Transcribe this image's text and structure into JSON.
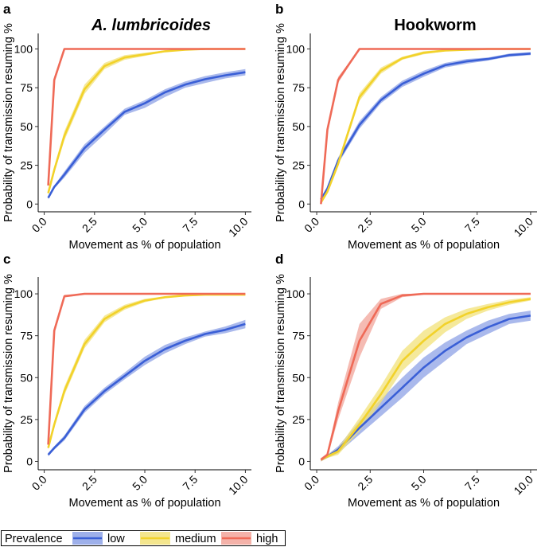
{
  "chart_data": [
    {
      "panel": "a",
      "type": "line",
      "title": "A. lumbricoides",
      "title_italic": true,
      "xlabel": "Movement as % of population",
      "ylabel": "Probability of transmission resuming %",
      "xlim": [
        -0.3,
        10.3
      ],
      "ylim": [
        -5,
        110
      ],
      "xticks": [
        0.0,
        2.5,
        5.0,
        7.5,
        10.0
      ],
      "xtick_labels": [
        "0.0",
        "2.5",
        "5.0",
        "7.5",
        "10.0"
      ],
      "yticks": [
        0,
        25,
        50,
        75,
        100
      ],
      "ytick_labels": [
        "0",
        "25",
        "50",
        "75",
        "100"
      ],
      "series": [
        {
          "name": "low",
          "x": [
            0.2,
            0.5,
            1,
            2,
            3,
            4,
            5,
            6,
            7,
            8,
            9,
            10
          ],
          "y": [
            4,
            11,
            19,
            36,
            48,
            59.5,
            65,
            72,
            77,
            80.5,
            83,
            85
          ],
          "lower": [
            3,
            10,
            17,
            33,
            45,
            57.5,
            62,
            69,
            75,
            78,
            81,
            83
          ],
          "upper": [
            5,
            12,
            21,
            38.5,
            50,
            61.5,
            67,
            74,
            79,
            82.5,
            85,
            87
          ]
        },
        {
          "name": "medium",
          "x": [
            0.2,
            0.5,
            1,
            2,
            3,
            4,
            5,
            6,
            7,
            8,
            9,
            10
          ],
          "y": [
            7,
            22,
            44,
            74,
            89,
            94.5,
            96.5,
            98.5,
            99.5,
            100,
            100,
            100
          ],
          "lower": [
            6,
            20,
            41,
            71,
            87,
            93,
            95.5,
            98,
            99,
            99.5,
            99.5,
            99.5
          ],
          "upper": [
            8,
            24,
            47,
            77,
            91,
            96,
            97.5,
            99,
            100,
            100,
            100,
            100
          ]
        },
        {
          "name": "high",
          "x": [
            0.2,
            0.5,
            1,
            2,
            3,
            4,
            5,
            6,
            7,
            8,
            9,
            10
          ],
          "y": [
            12,
            80,
            100,
            100,
            100,
            100,
            100,
            100,
            100,
            100,
            100,
            100
          ],
          "lower": [
            11,
            78,
            99.5,
            99.5,
            99.5,
            99.5,
            99.5,
            99.5,
            99.5,
            99.5,
            99.5,
            99.5
          ],
          "upper": [
            13,
            82,
            100,
            100,
            100,
            100,
            100,
            100,
            100,
            100,
            100,
            100
          ]
        }
      ]
    },
    {
      "panel": "b",
      "type": "line",
      "title": "Hookworm",
      "title_italic": false,
      "xlabel": "Movement as % of population",
      "ylabel": "Probability of transmission resuming %",
      "xlim": [
        -0.3,
        10.3
      ],
      "ylim": [
        -5,
        110
      ],
      "xticks": [
        0.0,
        2.5,
        5.0,
        7.5,
        10.0
      ],
      "xtick_labels": [
        "0.0",
        "2.5",
        "5.0",
        "7.5",
        "10.0"
      ],
      "yticks": [
        0,
        25,
        50,
        75,
        100
      ],
      "ytick_labels": [
        "0",
        "25",
        "50",
        "75",
        "100"
      ],
      "series": [
        {
          "name": "low",
          "x": [
            0.2,
            0.5,
            1,
            2,
            3,
            4,
            5,
            6,
            7,
            8,
            9,
            10
          ],
          "y": [
            3,
            10,
            28,
            51,
            67,
            77.5,
            84,
            89.5,
            92,
            93.5,
            96,
            97
          ],
          "lower": [
            2,
            9,
            26,
            48.5,
            65,
            75.5,
            82,
            88,
            90.5,
            92.5,
            95,
            96
          ],
          "upper": [
            4,
            11,
            30,
            53.5,
            69,
            79.5,
            86,
            91,
            93.5,
            94.5,
            97,
            98
          ]
        },
        {
          "name": "medium",
          "x": [
            0.2,
            0.5,
            1,
            2,
            3,
            4,
            5,
            6,
            7,
            8,
            9,
            10
          ],
          "y": [
            1,
            8,
            26,
            69,
            86,
            94,
            97.5,
            99,
            99.5,
            100,
            100,
            100
          ],
          "lower": [
            0,
            7,
            24,
            66.5,
            84,
            93,
            96.5,
            98.5,
            99,
            99.5,
            99.5,
            99.5
          ],
          "upper": [
            2,
            9,
            28,
            71.5,
            88,
            95,
            98.5,
            99.5,
            100,
            100,
            100,
            100
          ]
        },
        {
          "name": "high",
          "x": [
            0.2,
            0.5,
            1,
            2,
            3,
            4,
            5,
            6,
            7,
            8,
            9,
            10
          ],
          "y": [
            0,
            48,
            80,
            100,
            100,
            100,
            100,
            100,
            100,
            100,
            100,
            100
          ],
          "lower": [
            -1,
            46,
            78,
            99.5,
            99.5,
            99.5,
            99.5,
            99.5,
            99.5,
            99.5,
            99.5,
            99.5
          ],
          "upper": [
            1,
            50,
            82,
            100,
            100,
            100,
            100,
            100,
            100,
            100,
            100,
            100
          ]
        }
      ]
    },
    {
      "panel": "c",
      "type": "line",
      "title": "",
      "title_italic": false,
      "xlabel": "Movement as % of population",
      "ylabel": "Probability of transmission resuming %",
      "xlim": [
        -0.3,
        10.3
      ],
      "ylim": [
        -5,
        110
      ],
      "xticks": [
        0.0,
        2.5,
        5.0,
        7.5,
        10.0
      ],
      "xtick_labels": [
        "0.0",
        "2.5",
        "5.0",
        "7.5",
        "10.0"
      ],
      "yticks": [
        0,
        25,
        50,
        75,
        100
      ],
      "ytick_labels": [
        "0",
        "25",
        "50",
        "75",
        "100"
      ],
      "series": [
        {
          "name": "low",
          "x": [
            0.2,
            0.5,
            1,
            2,
            3,
            4,
            5,
            6,
            7,
            8,
            9,
            10
          ],
          "y": [
            4,
            8,
            14,
            31,
            42,
            51,
            60,
            67,
            72,
            76,
            78.5,
            82
          ],
          "lower": [
            3,
            7,
            12.5,
            29,
            40,
            49,
            57.5,
            64.5,
            70,
            74.5,
            76.5,
            79.5
          ],
          "upper": [
            5,
            9,
            15.5,
            33,
            44,
            53,
            62.5,
            69.5,
            74,
            77.5,
            80.5,
            84.5
          ]
        },
        {
          "name": "medium",
          "x": [
            0.2,
            0.5,
            1,
            2,
            3,
            4,
            5,
            6,
            7,
            8,
            9,
            10
          ],
          "y": [
            8,
            22,
            42,
            70,
            85,
            92,
            96,
            98,
            99,
            99.5,
            99.5,
            99.5
          ],
          "lower": [
            7,
            20,
            39.5,
            67.5,
            83,
            90.5,
            95,
            97.5,
            98.5,
            99,
            99,
            99
          ],
          "upper": [
            9,
            24,
            44.5,
            72.5,
            87,
            93.5,
            97,
            98.5,
            99.5,
            100,
            100,
            100
          ]
        },
        {
          "name": "high",
          "x": [
            0.2,
            0.5,
            1,
            2,
            3,
            4,
            5,
            6,
            7,
            8,
            9,
            10
          ],
          "y": [
            10,
            78,
            98.5,
            100,
            100,
            100,
            100,
            100,
            100,
            100,
            100,
            100
          ],
          "lower": [
            9,
            76,
            98,
            99.5,
            99.5,
            99.5,
            99.5,
            99.5,
            99.5,
            99.5,
            99.5,
            99.5
          ],
          "upper": [
            11,
            80,
            99.5,
            100,
            100,
            100,
            100,
            100,
            100,
            100,
            100,
            100
          ]
        }
      ]
    },
    {
      "panel": "d",
      "type": "line",
      "title": "",
      "title_italic": false,
      "xlabel": "Movement as % of population",
      "ylabel": "Probability of transmission resuming %",
      "xlim": [
        -0.3,
        10.3
      ],
      "ylim": [
        -5,
        110
      ],
      "xticks": [
        0.0,
        2.5,
        5.0,
        7.5,
        10.0
      ],
      "xtick_labels": [
        "0.0",
        "2.5",
        "5.0",
        "7.5",
        "10.0"
      ],
      "yticks": [
        0,
        25,
        50,
        75,
        100
      ],
      "ytick_labels": [
        "0",
        "25",
        "50",
        "75",
        "100"
      ],
      "series": [
        {
          "name": "low",
          "x": [
            0.2,
            0.5,
            1,
            2,
            3,
            4,
            5,
            6,
            7,
            8,
            9,
            10
          ],
          "y": [
            1,
            3,
            7,
            20,
            32,
            44,
            56,
            66,
            74,
            80,
            85,
            87
          ],
          "lower": [
            0,
            2,
            5,
            16,
            27,
            38,
            50,
            60,
            70,
            76,
            82,
            84
          ],
          "upper": [
            2,
            4,
            9,
            24,
            37,
            50,
            62,
            71,
            78,
            84,
            88,
            90
          ]
        },
        {
          "name": "medium",
          "x": [
            0.2,
            0.5,
            1,
            2,
            3,
            4,
            5,
            6,
            7,
            8,
            9,
            10
          ],
          "y": [
            1,
            3,
            6,
            22,
            40,
            60,
            72,
            82,
            88,
            92,
            95,
            97
          ],
          "lower": [
            0,
            2,
            4,
            18,
            35,
            54,
            66,
            77,
            85,
            90,
            93.5,
            96
          ],
          "upper": [
            2,
            4,
            8,
            26,
            45,
            66,
            78,
            86,
            91,
            94,
            96.5,
            98
          ]
        },
        {
          "name": "high",
          "x": [
            0.2,
            0.5,
            1,
            2,
            3,
            4,
            5,
            6,
            7,
            8,
            9,
            10
          ],
          "y": [
            1,
            4,
            30,
            72,
            94,
            99,
            100,
            100,
            100,
            100,
            100,
            100
          ],
          "lower": [
            0,
            3,
            25,
            62,
            91,
            98,
            99.5,
            99.5,
            99.5,
            99.5,
            99.5,
            99.5
          ],
          "upper": [
            2,
            5,
            35,
            82,
            97,
            100,
            100,
            100,
            100,
            100,
            100,
            100
          ]
        }
      ]
    }
  ],
  "legend": {
    "title": "Prevalence",
    "entries": [
      {
        "name": "low",
        "label": "low",
        "line_color": "#3a5fd6",
        "band_color": "#8da2e6"
      },
      {
        "name": "medium",
        "label": "medium",
        "line_color": "#f2d22a",
        "band_color": "#f2e27a"
      },
      {
        "name": "high",
        "label": "high",
        "line_color": "#ef6a57",
        "band_color": "#f2a49a"
      }
    ]
  },
  "colors": {
    "low": {
      "line": "#3a5fd6",
      "band": "#8da2e6"
    },
    "medium": {
      "line": "#f2d22a",
      "band": "#f2e27a"
    },
    "high": {
      "line": "#ef6a57",
      "band": "#f2a49a"
    }
  }
}
